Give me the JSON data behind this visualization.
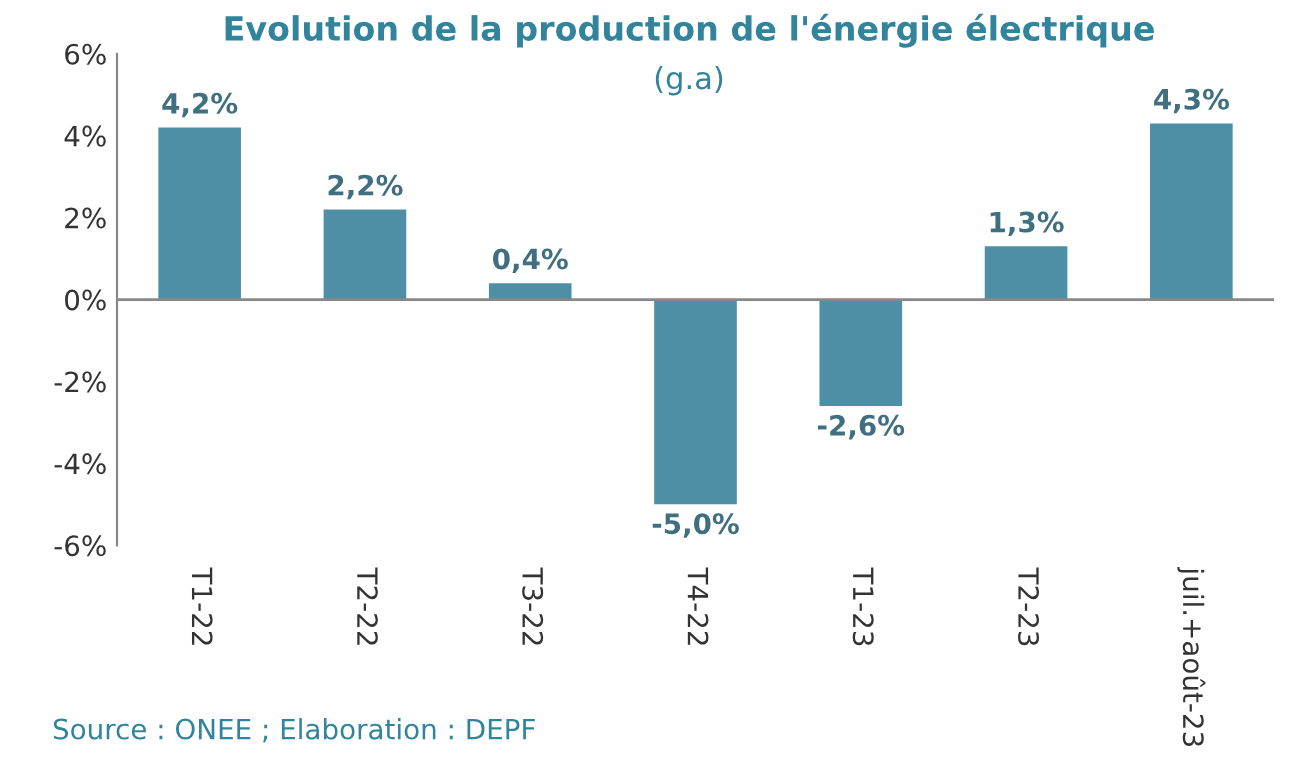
{
  "chart_data": {
    "type": "bar",
    "title": "Evolution de la production de l'énergie électrique",
    "subtitle": "(g.a)",
    "categories": [
      "T1-22",
      "T2-22",
      "T3-22",
      "T4-22",
      "T1-23",
      "T2-23",
      "juil.+août-23"
    ],
    "values": [
      4.2,
      2.2,
      0.4,
      -5.0,
      -2.6,
      1.3,
      4.3
    ],
    "value_labels": [
      "4,2%",
      "2,2%",
      "0,4%",
      "-5,0%",
      "-2,6%",
      "1,3%",
      "4,3%"
    ],
    "color": "#4f8fa5",
    "ylim": [
      -6,
      6
    ],
    "yticks": [
      {
        "value": -6,
        "label": "-6%"
      },
      {
        "value": -4,
        "label": "-4%"
      },
      {
        "value": -2,
        "label": "-2%"
      },
      {
        "value": 0,
        "label": "0%"
      },
      {
        "value": 2,
        "label": "2%"
      },
      {
        "value": 4,
        "label": "4%"
      },
      {
        "value": 6,
        "label": "6%"
      }
    ],
    "grid": false,
    "ref_lines": [
      {
        "axis": "y",
        "value": 0,
        "color": "#888888"
      }
    ],
    "legend": false,
    "annotations": [
      "Source : ONEE ; Elaboration : DEPF"
    ]
  }
}
